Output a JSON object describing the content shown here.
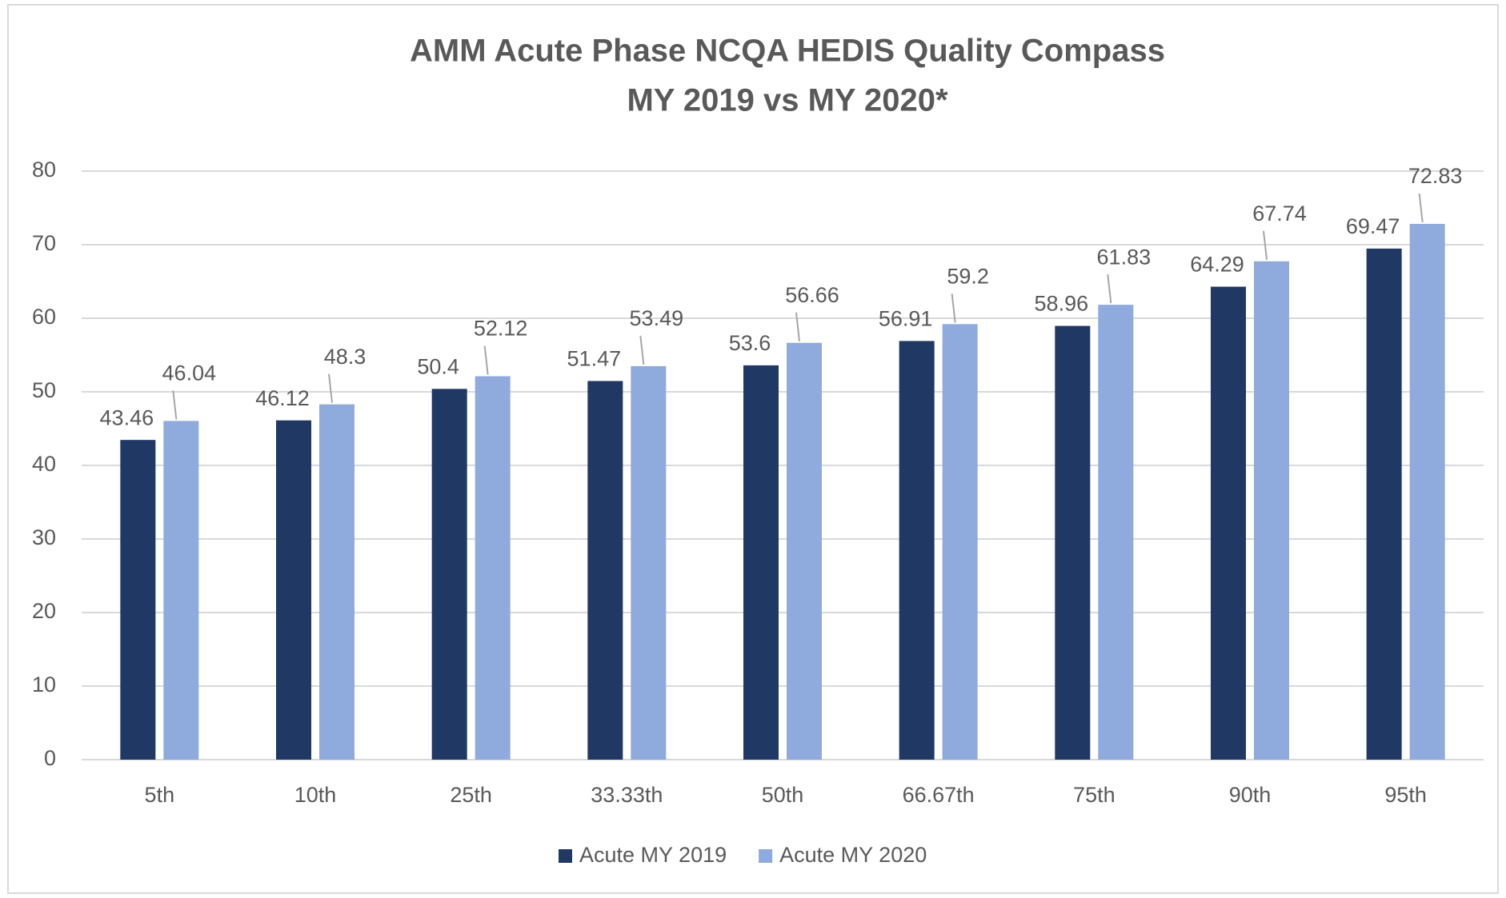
{
  "chart_data": {
    "type": "bar",
    "title": "AMM Acute Phase NCQA HEDIS Quality Compass",
    "subtitle": "MY 2019 vs MY 2020*",
    "categories": [
      "5th",
      "10th",
      "25th",
      "33.33th",
      "50th",
      "66.67th",
      "75th",
      "90th",
      "95th"
    ],
    "series": [
      {
        "name": "Acute MY 2019",
        "color": "#203864",
        "values": [
          43.46,
          46.12,
          50.4,
          51.47,
          53.6,
          56.91,
          58.96,
          64.29,
          69.47
        ]
      },
      {
        "name": "Acute MY 2020",
        "color": "#8faadc",
        "values": [
          46.04,
          48.3,
          52.12,
          53.49,
          56.66,
          59.2,
          61.83,
          67.74,
          72.83
        ]
      }
    ],
    "ylim": [
      0,
      80
    ],
    "yticks": [
      0,
      10,
      20,
      30,
      40,
      50,
      60,
      70,
      80
    ],
    "grid": true,
    "legend": "bottom"
  }
}
